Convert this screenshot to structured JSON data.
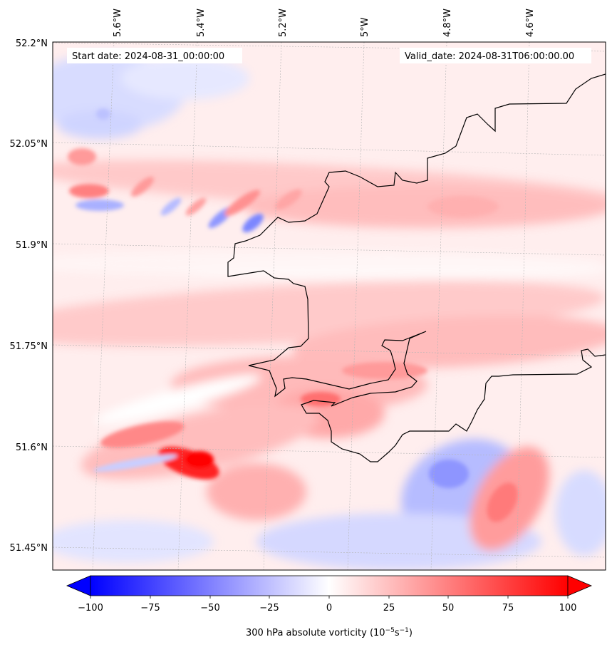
{
  "header": {
    "start_date": "Start date: 2024-08-31_00:00:00",
    "valid_date": "Valid_date: 2024-08-31T06:00:00.00"
  },
  "axes": {
    "lon_labels": [
      "5.6°W",
      "5.4°W",
      "5.2°W",
      "5°W",
      "4.8°W",
      "4.6°W"
    ],
    "lat_labels": [
      "52.2°N",
      "52.05°N",
      "51.9°N",
      "51.75°N",
      "51.6°N",
      "51.45°N"
    ]
  },
  "colorbar": {
    "ticks": [
      "−100",
      "−75",
      "−50",
      "−25",
      "0",
      "25",
      "50",
      "75",
      "100"
    ],
    "label_main": "300 hPa absolute vorticity (10",
    "label_exp1": "−5",
    "label_mid": "s",
    "label_exp2": "−1",
    "label_end": ")",
    "min": -100,
    "max": 100,
    "low_color": "#0000ff",
    "mid_color": "#ffffff",
    "high_color": "#ff0000"
  }
}
